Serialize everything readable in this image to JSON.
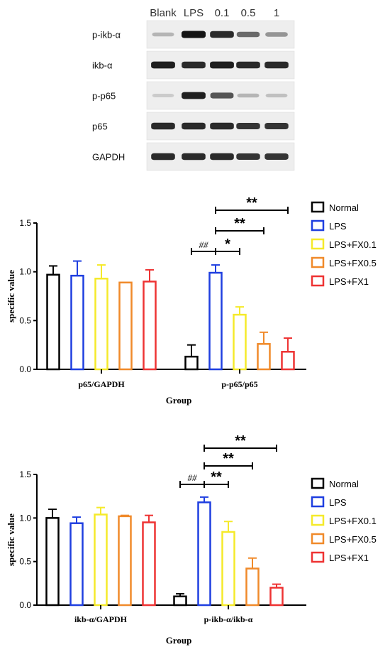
{
  "blot": {
    "columns": [
      "Blank",
      "LPS",
      "0.1",
      "0.5",
      "1"
    ],
    "lanes": [
      {
        "label": "p-ikb-α",
        "intensities": [
          0.25,
          1.0,
          0.9,
          0.6,
          0.4
        ]
      },
      {
        "label": "ikb-α",
        "intensities": [
          0.95,
          0.9,
          0.95,
          0.9,
          0.9
        ]
      },
      {
        "label": "p-p65",
        "intensities": [
          0.15,
          0.95,
          0.7,
          0.25,
          0.2
        ]
      },
      {
        "label": "p65",
        "intensities": [
          0.9,
          0.9,
          0.9,
          0.85,
          0.85
        ]
      },
      {
        "label": "GAPDH",
        "intensities": [
          0.9,
          0.9,
          0.9,
          0.85,
          0.85
        ]
      }
    ]
  },
  "legend": {
    "entries": [
      {
        "label": "Normal",
        "color": "#000000"
      },
      {
        "label": "LPS",
        "color": "#1f3fe0"
      },
      {
        "label": "LPS+FX0.1",
        "color": "#f5ea2a"
      },
      {
        "label": "LPS+FX0.5",
        "color": "#f08a2a"
      },
      {
        "label": "LPS+FX1",
        "color": "#ee3333"
      }
    ]
  },
  "chart_data": [
    {
      "type": "bar",
      "categories": [
        "p65/GAPDH",
        "p-p65/p65"
      ],
      "series": [
        {
          "name": "Normal",
          "values": [
            0.97,
            0.13
          ],
          "errors": [
            0.09,
            0.12
          ]
        },
        {
          "name": "LPS",
          "values": [
            0.96,
            0.99
          ],
          "errors": [
            0.15,
            0.08
          ]
        },
        {
          "name": "LPS+FX0.1",
          "values": [
            0.93,
            0.56
          ],
          "errors": [
            0.14,
            0.08
          ]
        },
        {
          "name": "LPS+FX0.5",
          "values": [
            0.89,
            0.26
          ],
          "errors": [
            0.0,
            0.12
          ]
        },
        {
          "name": "LPS+FX1",
          "values": [
            0.9,
            0.18
          ],
          "errors": [
            0.12,
            0.14
          ]
        }
      ],
      "xlabel": "Group",
      "ylabel": "specific value",
      "ylim": [
        0,
        1.5
      ],
      "yticks": [
        "0.0",
        "0.5",
        "1.0",
        "1.5"
      ],
      "annotations": [
        {
          "text": "##",
          "category": 1,
          "from": 0,
          "to": 1,
          "level": 0
        },
        {
          "text": "*",
          "category": 1,
          "from": 1,
          "to": 2,
          "level": 0
        },
        {
          "text": "**",
          "category": 1,
          "from": 1,
          "to": 3,
          "level": 1
        },
        {
          "text": "**",
          "category": 1,
          "from": 1,
          "to": 4,
          "level": 2
        }
      ],
      "legend": "right"
    },
    {
      "type": "bar",
      "categories": [
        "ikb-α/GAPDH",
        "p-ikb-α/ikb-α"
      ],
      "series": [
        {
          "name": "Normal",
          "values": [
            1.0,
            0.1
          ],
          "errors": [
            0.1,
            0.03
          ]
        },
        {
          "name": "LPS",
          "values": [
            0.94,
            1.18
          ],
          "errors": [
            0.07,
            0.06
          ]
        },
        {
          "name": "LPS+FX0.1",
          "values": [
            1.04,
            0.84
          ],
          "errors": [
            0.08,
            0.12
          ]
        },
        {
          "name": "LPS+FX0.5",
          "values": [
            1.02,
            0.42
          ],
          "errors": [
            0.01,
            0.12
          ]
        },
        {
          "name": "LPS+FX1",
          "values": [
            0.95,
            0.2
          ],
          "errors": [
            0.08,
            0.04
          ]
        }
      ],
      "xlabel": "Group",
      "ylabel": "specific value",
      "ylim": [
        0,
        1.5
      ],
      "yticks": [
        "0.0",
        "0.5",
        "1.0",
        "1.5"
      ],
      "annotations": [
        {
          "text": "##",
          "category": 1,
          "from": 0,
          "to": 1,
          "level": 0
        },
        {
          "text": "**",
          "category": 1,
          "from": 1,
          "to": 2,
          "level": 0
        },
        {
          "text": "**",
          "category": 1,
          "from": 1,
          "to": 3,
          "level": 1
        },
        {
          "text": "**",
          "category": 1,
          "from": 1,
          "to": 4,
          "level": 2
        }
      ],
      "legend": "right"
    }
  ]
}
